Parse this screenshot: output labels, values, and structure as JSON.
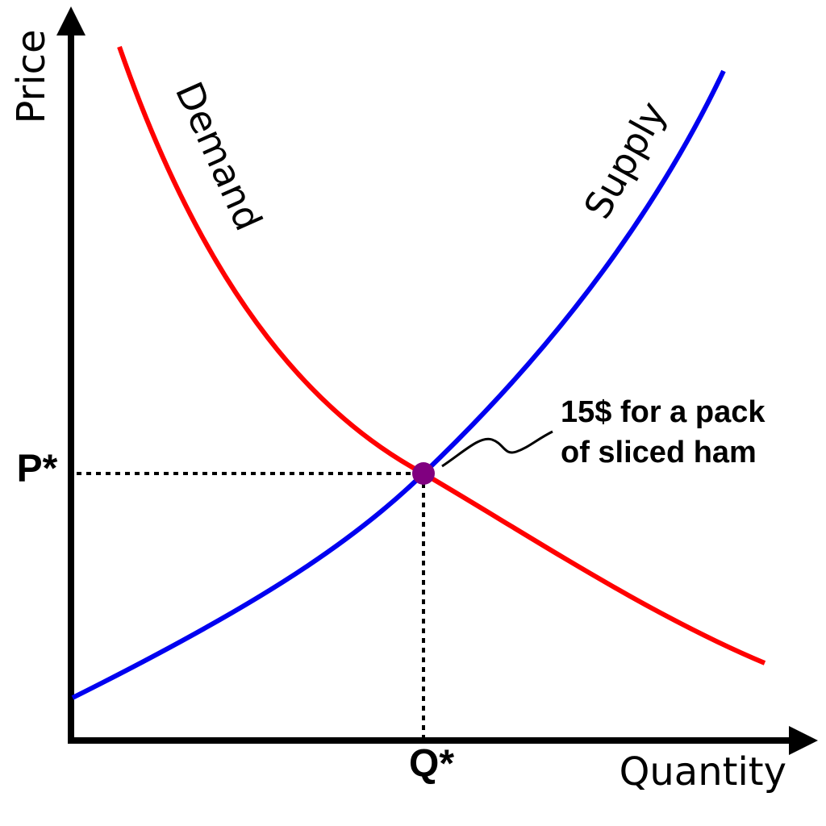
{
  "axes": {
    "y_label": "Price",
    "x_label": "Quantity"
  },
  "curves": {
    "demand": "Demand",
    "supply": "Supply"
  },
  "equilibrium": {
    "price_label": "P*",
    "quantity_label": "Q*",
    "annotation": [
      "15$ for a pack",
      "of sliced ham"
    ]
  }
}
